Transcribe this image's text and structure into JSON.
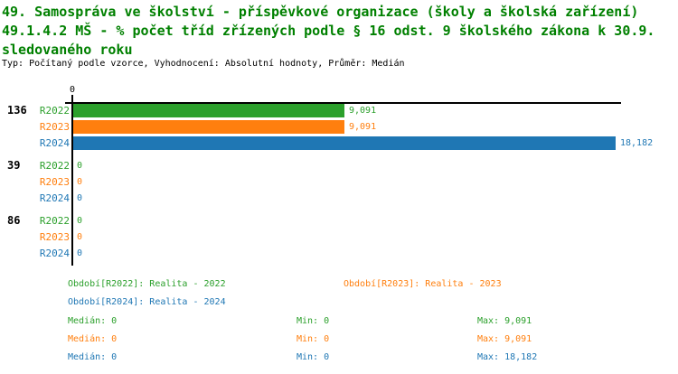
{
  "title": {
    "line1": "49. Samospráva ve školství - příspěvkové organizace (školy a školská zařízení)",
    "line2": "49.1.4.2 MŠ - % počet tříd zřízených podle § 16 odst. 9 školského zákona k 30.9.",
    "line3": "sledovaného roku",
    "meta": "Typ: Počítaný podle vzorce, Vyhodnocení: Absolutní hodnoty, Průměr: Medián"
  },
  "colors": {
    "title": "#008000",
    "text": "#000000",
    "axis": "#000000",
    "series": {
      "R2022": "#2ca02c",
      "R2023": "#ff7f0e",
      "R2024": "#1f77b4"
    }
  },
  "chart_data": {
    "type": "bar",
    "orientation": "horizontal",
    "x_axis": {
      "origin_label": "0",
      "xlim": [
        0,
        18182
      ],
      "grid": false
    },
    "series": [
      "R2022",
      "R2023",
      "R2024"
    ],
    "groups": [
      {
        "label": "136",
        "rows": [
          {
            "series": "R2022",
            "value": 9091,
            "display": "9,091"
          },
          {
            "series": "R2023",
            "value": 9091,
            "display": "9,091"
          },
          {
            "series": "R2024",
            "value": 18182,
            "display": "18,182"
          }
        ]
      },
      {
        "label": "39",
        "rows": [
          {
            "series": "R2022",
            "value": 0,
            "display": "0"
          },
          {
            "series": "R2023",
            "value": 0,
            "display": "0"
          },
          {
            "series": "R2024",
            "value": 0,
            "display": "0"
          }
        ]
      },
      {
        "label": "86",
        "rows": [
          {
            "series": "R2022",
            "value": 0,
            "display": "0"
          },
          {
            "series": "R2023",
            "value": 0,
            "display": "0"
          },
          {
            "series": "R2024",
            "value": 0,
            "display": "0"
          }
        ]
      }
    ]
  },
  "legend": [
    {
      "series": "R2022",
      "label": "Období[R2022]: Realita - 2022",
      "col": 0,
      "row": 0
    },
    {
      "series": "R2023",
      "label": "Období[R2023]: Realita - 2023",
      "col": 1,
      "row": 0
    },
    {
      "series": "R2024",
      "label": "Období[R2024]: Realita - 2024",
      "col": 0,
      "row": 1
    }
  ],
  "stats": [
    {
      "series": "R2022",
      "median": "Medián: 0",
      "min": "Min: 0",
      "max": "Max: 9,091"
    },
    {
      "series": "R2023",
      "median": "Medián: 0",
      "min": "Min: 0",
      "max": "Max: 9,091"
    },
    {
      "series": "R2024",
      "median": "Medián: 0",
      "min": "Min: 0",
      "max": "Max: 18,182"
    }
  ]
}
